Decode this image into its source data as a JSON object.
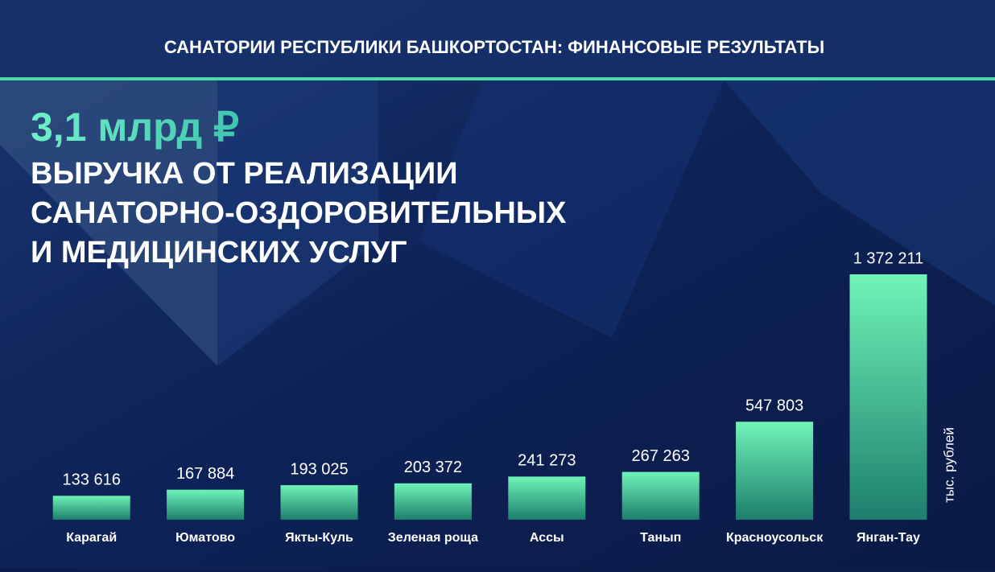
{
  "header": {
    "title": "САНАТОРИИ РЕСПУБЛИКИ БАШКОРТОСТАН: ФИНАНСОВЫЕ РЕЗУЛЬТАТЫ"
  },
  "chart_data": {
    "type": "bar",
    "headline": "3,1 млрд ₽",
    "title_lines": [
      "ВЫРУЧКА ОТ РЕАЛИЗАЦИИ",
      "САНАТОРНО-ОЗДОРОВИТЕЛЬНЫХ",
      "И МЕДИЦИНСКИХ УСЛУГ"
    ],
    "unit": "тыс. рублей",
    "categories": [
      "Карагай",
      "Юматово",
      "Якты-Куль",
      "Зеленая роща",
      "Ассы",
      "Танып",
      "Красноусольск",
      "Янган-Тау"
    ],
    "values": [
      133616,
      167884,
      193025,
      203372,
      241273,
      267263,
      547803,
      1372211
    ],
    "value_labels": [
      "133 616",
      "167 884",
      "193 025",
      "203 372",
      "241 273",
      "267 263",
      "547 803",
      "1 372 211"
    ],
    "color": "#5fe8b0"
  }
}
